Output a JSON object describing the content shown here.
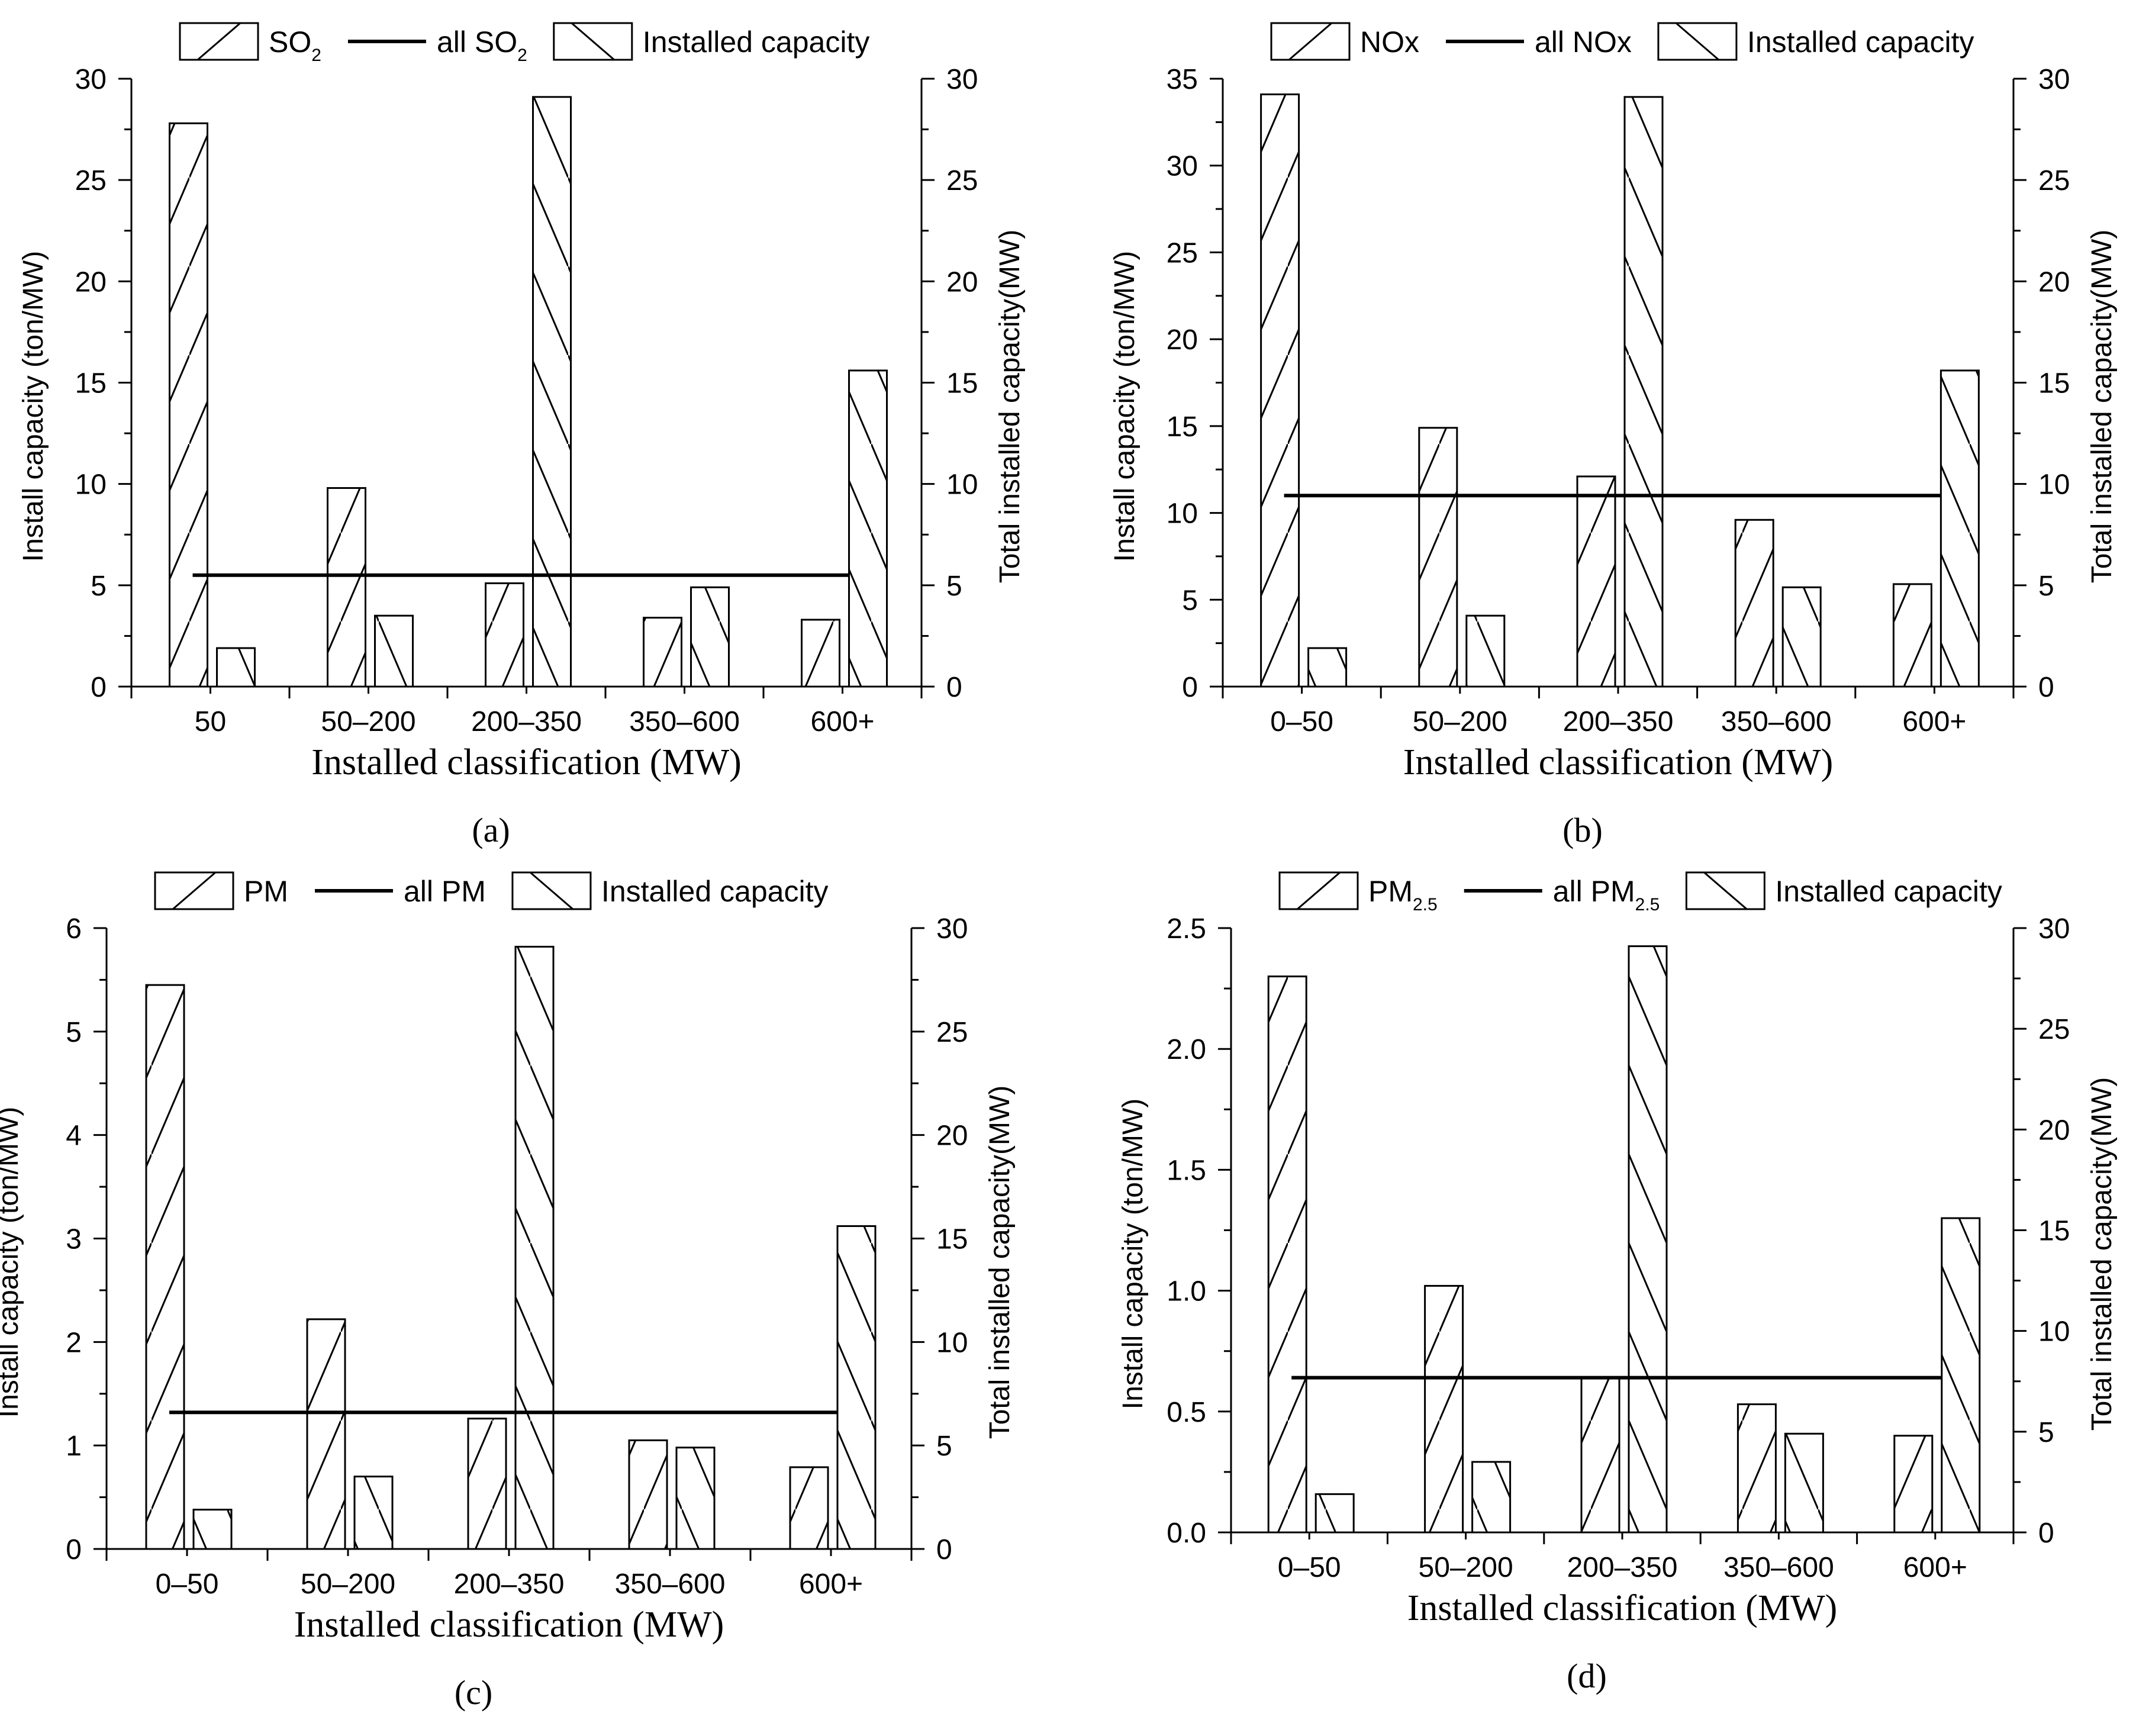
{
  "chart_data": [
    {
      "id": "a",
      "type": "bar",
      "caption": "(a)",
      "categories": [
        "50",
        "50–200",
        "200–350",
        "350–600",
        "600+"
      ],
      "xlabel": "Installed classification (MW)",
      "ylabel_left": "Install capacity (ton/MW)",
      "ylabel_right": "Total installed capacity(MW)",
      "ylim_left": [
        0,
        30
      ],
      "yticks_left": [
        0,
        5,
        10,
        15,
        20,
        25,
        30
      ],
      "ylim_right": [
        0,
        30
      ],
      "yticks_right": [
        0,
        5,
        10,
        15,
        20,
        25,
        30
      ],
      "grid": false,
      "legend_position": "top",
      "legend": {
        "bar_main": {
          "text": "SO",
          "sub": "2"
        },
        "line": {
          "text": "all SO",
          "sub": "2"
        },
        "bar_capacity": {
          "text": "Installed capacity",
          "sub": ""
        }
      },
      "series": [
        {
          "role": "bar_main",
          "axis": "left",
          "hatch": "forward",
          "values": [
            27.8,
            9.8,
            5.1,
            3.4,
            3.3
          ]
        },
        {
          "role": "bar_capacity",
          "axis": "right",
          "hatch": "back",
          "values": [
            1.9,
            3.5,
            29.1,
            4.9,
            15.6
          ]
        },
        {
          "role": "line",
          "axis": "left",
          "value": 5.5
        }
      ]
    },
    {
      "id": "b",
      "type": "bar",
      "caption": "(b)",
      "categories": [
        "0–50",
        "50–200",
        "200–350",
        "350–600",
        "600+"
      ],
      "xlabel": "Installed classification (MW)",
      "ylabel_left": "Install capacity (ton/MW)",
      "ylabel_right": "Total installed capacity(MW)",
      "ylim_left": [
        0,
        35
      ],
      "yticks_left": [
        0,
        5,
        10,
        15,
        20,
        25,
        30,
        35
      ],
      "ylim_right": [
        0,
        30
      ],
      "yticks_right": [
        0,
        5,
        10,
        15,
        20,
        25,
        30
      ],
      "grid": false,
      "legend_position": "top",
      "legend": {
        "bar_main": {
          "text": "NOx",
          "sub": ""
        },
        "line": {
          "text": "all NOx",
          "sub": ""
        },
        "bar_capacity": {
          "text": "Installed capacity",
          "sub": ""
        }
      },
      "series": [
        {
          "role": "bar_main",
          "axis": "left",
          "hatch": "forward",
          "values": [
            34.1,
            14.9,
            12.1,
            9.6,
            5.9
          ]
        },
        {
          "role": "bar_capacity",
          "axis": "right",
          "hatch": "back",
          "values": [
            1.9,
            3.5,
            29.1,
            4.9,
            15.6
          ]
        },
        {
          "role": "line",
          "axis": "left",
          "value": 11.0
        }
      ]
    },
    {
      "id": "c",
      "type": "bar",
      "caption": "(c)",
      "categories": [
        "0–50",
        "50–200",
        "200–350",
        "350–600",
        "600+"
      ],
      "xlabel": "Installed classification (MW)",
      "ylabel_left": "Install capacity (ton/MW)",
      "ylabel_right": "Total installed capacity(MW)",
      "ylim_left": [
        0,
        6
      ],
      "yticks_left": [
        0,
        1,
        2,
        3,
        4,
        5,
        6
      ],
      "ylim_right": [
        0,
        30
      ],
      "yticks_right": [
        0,
        5,
        10,
        15,
        20,
        25,
        30
      ],
      "grid": false,
      "legend_position": "top",
      "legend": {
        "bar_main": {
          "text": "PM",
          "sub": ""
        },
        "line": {
          "text": "all PM",
          "sub": ""
        },
        "bar_capacity": {
          "text": "Installed capacity",
          "sub": ""
        }
      },
      "series": [
        {
          "role": "bar_main",
          "axis": "left",
          "hatch": "forward",
          "values": [
            5.45,
            2.22,
            1.26,
            1.05,
            0.79
          ]
        },
        {
          "role": "bar_capacity",
          "axis": "right",
          "hatch": "back",
          "values": [
            1.9,
            3.5,
            29.1,
            4.9,
            15.6
          ]
        },
        {
          "role": "line",
          "axis": "left",
          "value": 1.32
        }
      ]
    },
    {
      "id": "d",
      "type": "bar",
      "caption": "(d)",
      "categories": [
        "0–50",
        "50–200",
        "200–350",
        "350–600",
        "600+"
      ],
      "xlabel": "Installed classification (MW)",
      "ylabel_left": "Install capacity (ton/MW)",
      "ylabel_right": "Total installed capacity(MW)",
      "ylim_left": [
        0,
        2.5
      ],
      "yticks_left": [
        "0.0",
        "0.5",
        "1.0",
        "1.5",
        "2.0",
        "2.5"
      ],
      "ylim_right": [
        0,
        30
      ],
      "yticks_right": [
        0,
        5,
        10,
        15,
        20,
        25,
        30
      ],
      "grid": false,
      "legend_position": "top",
      "legend": {
        "bar_main": {
          "text": "PM",
          "sub": "2.5"
        },
        "line": {
          "text": "all PM",
          "sub": "2.5"
        },
        "bar_capacity": {
          "text": "Installed capacity",
          "sub": ""
        }
      },
      "series": [
        {
          "role": "bar_main",
          "axis": "left",
          "hatch": "forward",
          "values": [
            2.3,
            1.02,
            0.64,
            0.53,
            0.4
          ]
        },
        {
          "role": "bar_capacity",
          "axis": "right",
          "hatch": "back",
          "values": [
            1.9,
            3.5,
            29.1,
            4.9,
            15.6
          ]
        },
        {
          "role": "line",
          "axis": "left",
          "value": 0.64
        }
      ]
    }
  ]
}
